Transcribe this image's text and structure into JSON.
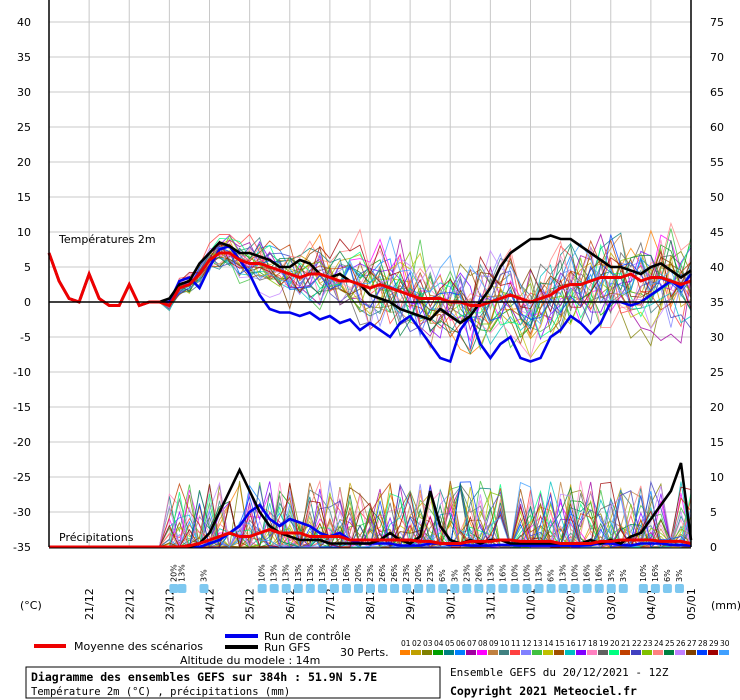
{
  "chart_data": {
    "type": "line",
    "title": "Diagramme des ensembles GEFS sur 384h : 51.9N 5.7E",
    "subtitle": "Température 2m (°C) , précipitations (mm)",
    "altitude": "Altitude du modele : 14m",
    "run_info": "Ensemble GEFS du 20/12/2021 - 12Z",
    "copyright": "Copyright 2021 Meteociel.fr",
    "left_unit": "(°C)",
    "right_unit": "(mm)",
    "temp_label": "Températures 2m",
    "precip_label": "Précipitations",
    "left_ticks": [
      "40",
      "35",
      "30",
      "25",
      "20",
      "15",
      "10",
      "5",
      "0",
      "-5",
      "-10",
      "-15",
      "-20",
      "-25",
      "-30",
      "-35"
    ],
    "right_ticks": [
      "75",
      "70",
      "65",
      "60",
      "55",
      "50",
      "45",
      "40",
      "35",
      "30",
      "25",
      "20",
      "15",
      "10",
      "5",
      "0"
    ],
    "ylim_temp": [
      -35,
      40
    ],
    "ylim_precip": [
      0,
      75
    ],
    "x_dates": [
      "21/12",
      "22/12",
      "23/12",
      "24/12",
      "25/12",
      "26/12",
      "27/12",
      "28/12",
      "29/12",
      "30/12",
      "31/12",
      "01/01",
      "02/01",
      "03/01",
      "04/01",
      "05/01"
    ],
    "legend": {
      "mean": "Moyenne des scénarios",
      "control": "Run de contrôle",
      "gfs": "Run GFS",
      "perts": "30 Perts."
    },
    "pert_labels": [
      "01",
      "02",
      "03",
      "04",
      "05",
      "06",
      "07",
      "08",
      "09",
      "10",
      "11",
      "12",
      "13",
      "14",
      "15",
      "16",
      "17",
      "18",
      "19",
      "20",
      "21",
      "22",
      "23",
      "24",
      "25",
      "26",
      "27",
      "28",
      "29",
      "30"
    ],
    "pert_colors": [
      "#ff8000",
      "#c0a000",
      "#808000",
      "#00a000",
      "#008080",
      "#0080ff",
      "#a000a0",
      "#ff00ff",
      "#c08040",
      "#408080",
      "#ff4040",
      "#8080ff",
      "#40c040",
      "#c0c000",
      "#a05000",
      "#00c0c0",
      "#8000ff",
      "#ff80c0",
      "#606060",
      "#00ff80",
      "#c04000",
      "#4040c0",
      "#80c000",
      "#ff8080",
      "#008040",
      "#c080ff",
      "#804000",
      "#0040ff",
      "#a00000",
      "#40a0ff"
    ],
    "snow_marks": [
      {
        "t": 23.1,
        "v": "20%"
      },
      {
        "t": 23.3,
        "v": "13%"
      },
      {
        "t": 23.85,
        "v": "3%"
      },
      {
        "t": 25.3,
        "v": "10%"
      },
      {
        "t": 25.6,
        "v": "13%"
      },
      {
        "t": 25.9,
        "v": "13%"
      },
      {
        "t": 26.2,
        "v": "13%"
      },
      {
        "t": 26.5,
        "v": "13%"
      },
      {
        "t": 26.8,
        "v": "13%"
      },
      {
        "t": 27.1,
        "v": "10%"
      },
      {
        "t": 27.4,
        "v": "16%"
      },
      {
        "t": 27.7,
        "v": "20%"
      },
      {
        "t": 28.0,
        "v": "23%"
      },
      {
        "t": 28.3,
        "v": "26%"
      },
      {
        "t": 28.6,
        "v": "26%"
      },
      {
        "t": 28.9,
        "v": "23%"
      },
      {
        "t": 29.2,
        "v": "20%"
      },
      {
        "t": 29.5,
        "v": "23%"
      },
      {
        "t": 29.8,
        "v": "6%"
      },
      {
        "t": 30.1,
        "v": "3%"
      },
      {
        "t": 30.4,
        "v": "23%"
      },
      {
        "t": 30.7,
        "v": "26%"
      },
      {
        "t": 31.0,
        "v": "13%"
      },
      {
        "t": 31.3,
        "v": "16%"
      },
      {
        "t": 31.6,
        "v": "10%"
      },
      {
        "t": 31.9,
        "v": "10%"
      },
      {
        "t": 32.2,
        "v": "13%"
      },
      {
        "t": 32.5,
        "v": "6%"
      },
      {
        "t": 32.8,
        "v": "13%"
      },
      {
        "t": 33.1,
        "v": "10%"
      },
      {
        "t": 33.4,
        "v": "16%"
      },
      {
        "t": 33.7,
        "v": "16%"
      },
      {
        "t": 34.0,
        "v": "3%"
      },
      {
        "t": 34.3,
        "v": "3%"
      },
      {
        "t": 34.8,
        "v": "10%"
      },
      {
        "t": 35.1,
        "v": "16%"
      },
      {
        "t": 35.4,
        "v": "6%"
      },
      {
        "t": 35.7,
        "v": "3%"
      }
    ],
    "series": [
      {
        "key": "mean",
        "color": "#ee0000",
        "t": [
          20.0,
          20.25,
          20.5,
          20.75,
          21.0,
          21.25,
          21.5,
          21.75,
          22.0,
          22.25,
          22.5,
          22.75,
          23.0,
          23.25,
          23.5,
          23.75,
          24.0,
          24.25,
          24.5,
          24.75,
          25.0,
          25.25,
          25.5,
          25.75,
          26.0,
          26.25,
          26.5,
          26.75,
          27.0,
          27.25,
          27.5,
          27.75,
          28.0,
          28.25,
          28.5,
          28.75,
          29.0,
          29.25,
          29.5,
          29.75,
          30.0,
          30.25,
          30.5,
          30.75,
          31.0,
          31.25,
          31.5,
          31.75,
          32.0,
          32.25,
          32.5,
          32.75,
          33.0,
          33.25,
          33.5,
          33.75,
          34.0,
          34.25,
          34.5,
          34.75,
          35.0,
          35.25,
          35.5,
          35.75,
          36.0
        ],
        "temp": [
          7,
          3,
          0.5,
          0,
          4,
          0.5,
          -0.5,
          -0.5,
          2.5,
          -0.5,
          0,
          0,
          -0.5,
          2,
          2.5,
          4,
          6,
          7,
          7,
          6,
          5.5,
          5.5,
          5,
          4.5,
          4,
          3.5,
          4,
          4,
          3.5,
          3,
          3,
          2.5,
          2,
          2.5,
          2,
          1.5,
          1,
          0.5,
          0.5,
          0.5,
          0,
          0,
          -0.5,
          -0.5,
          0,
          0.5,
          1,
          0.5,
          0,
          0.5,
          1,
          2,
          2.5,
          2.5,
          3,
          3.5,
          3.5,
          3.5,
          4,
          3,
          3.5,
          3.5,
          3,
          2.5,
          3
        ],
        "precip": [
          0,
          0,
          0,
          0,
          0,
          0,
          0,
          0,
          0,
          0,
          0,
          0,
          0,
          0,
          0.2,
          0.5,
          1,
          1.5,
          2,
          1.5,
          1.5,
          2,
          2.5,
          2,
          2,
          2,
          1.5,
          1.5,
          1.5,
          1.5,
          1,
          1,
          1,
          1,
          1,
          1,
          1,
          0.8,
          0.8,
          0.5,
          0.5,
          0.5,
          0.8,
          0.8,
          0.8,
          1,
          1,
          0.8,
          0.8,
          0.8,
          0.8,
          0.5,
          0.5,
          0.5,
          0.5,
          0.8,
          0.8,
          1,
          1,
          1,
          1,
          0.8,
          0.8,
          0.8,
          0.5
        ]
      },
      {
        "key": "control",
        "color": "#0000ee",
        "t": [
          20.0,
          20.25,
          20.5,
          20.75,
          21.0,
          21.25,
          21.5,
          21.75,
          22.0,
          22.25,
          22.5,
          22.75,
          23.0,
          23.25,
          23.5,
          23.75,
          24.0,
          24.25,
          24.5,
          24.75,
          25.0,
          25.25,
          25.5,
          25.75,
          26.0,
          26.25,
          26.5,
          26.75,
          27.0,
          27.25,
          27.5,
          27.75,
          28.0,
          28.25,
          28.5,
          28.75,
          29.0,
          29.25,
          29.5,
          29.75,
          30.0,
          30.25,
          30.5,
          30.75,
          31.0,
          31.25,
          31.5,
          31.75,
          32.0,
          32.25,
          32.5,
          32.75,
          33.0,
          33.25,
          33.5,
          33.75,
          34.0,
          34.25,
          34.5,
          34.75,
          35.0,
          35.25,
          35.5,
          35.75,
          36.0
        ],
        "temp": [
          7,
          3,
          0.5,
          0,
          4,
          0.5,
          -0.5,
          -0.5,
          2.5,
          -0.5,
          0,
          0,
          0,
          3,
          3.5,
          2,
          5,
          7.5,
          8,
          6,
          4,
          1,
          -1,
          -1.5,
          -1.5,
          -2,
          -1.5,
          -2.5,
          -2,
          -3,
          -2.5,
          -4,
          -3,
          -4,
          -5,
          -3,
          -2,
          -4,
          -6,
          -8,
          -8.5,
          -4,
          -2,
          -6,
          -8,
          -6,
          -5,
          -8,
          -8.5,
          -8,
          -5,
          -4,
          -2,
          -3,
          -4.5,
          -3,
          0,
          0,
          -0.5,
          0,
          1,
          2,
          3,
          2,
          4
        ],
        "precip": [
          0,
          0,
          0,
          0,
          0,
          0,
          0,
          0,
          0,
          0,
          0,
          0,
          0,
          0,
          0,
          0,
          0.5,
          1,
          2,
          3,
          5,
          6,
          4,
          3,
          4,
          3.5,
          3,
          2,
          1.5,
          2,
          1,
          0.5,
          0.5,
          0.5,
          0.5,
          0.2,
          0.2,
          0.2,
          0.5,
          0.5,
          0.3,
          0.3,
          0.2,
          0.2,
          0.2,
          0.3,
          0.3,
          0.2,
          0.2,
          0.2,
          0.2,
          0.2,
          0.2,
          0.2,
          0.3,
          0.5,
          0.5,
          0.3,
          0.2,
          0.5,
          0.5,
          0.5,
          0.3,
          0.3,
          0.2
        ]
      },
      {
        "key": "gfs",
        "color": "#000000",
        "t": [
          20.0,
          20.25,
          20.5,
          20.75,
          21.0,
          21.25,
          21.5,
          21.75,
          22.0,
          22.25,
          22.5,
          22.75,
          23.0,
          23.25,
          23.5,
          23.75,
          24.0,
          24.25,
          24.5,
          24.75,
          25.0,
          25.25,
          25.5,
          25.75,
          26.0,
          26.25,
          26.5,
          26.75,
          27.0,
          27.25,
          27.5,
          27.75,
          28.0,
          28.25,
          28.5,
          28.75,
          29.0,
          29.25,
          29.5,
          29.75,
          30.0,
          30.25,
          30.5,
          30.75,
          31.0,
          31.25,
          31.5,
          31.75,
          32.0,
          32.25,
          32.5,
          32.75,
          33.0,
          33.25,
          33.5,
          33.75,
          34.0,
          34.25,
          34.5,
          34.75,
          35.0,
          35.25,
          35.5,
          35.75,
          36.0
        ],
        "temp": [
          7,
          3,
          0.5,
          0,
          4,
          0.5,
          -0.5,
          -0.5,
          2.5,
          -0.5,
          0,
          0,
          0.5,
          2.5,
          3,
          5.5,
          7,
          8.5,
          8,
          7,
          7,
          6.5,
          6,
          5,
          5,
          6,
          5.5,
          4,
          3.5,
          4,
          3,
          2.5,
          1,
          0.5,
          0,
          -1,
          -1.5,
          -2,
          -2.5,
          -1,
          -2,
          -3,
          -2,
          0,
          2,
          5,
          7,
          8,
          9,
          9,
          9.5,
          9,
          9,
          8,
          7,
          6,
          5,
          5,
          4.5,
          4,
          5,
          5.5,
          4.5,
          3.5,
          4.5
        ],
        "precip": [
          0,
          0,
          0,
          0,
          0,
          0,
          0,
          0,
          0,
          0,
          0,
          0,
          0,
          0,
          0,
          0.5,
          2,
          5,
          8,
          11,
          8,
          5,
          3,
          2,
          1.5,
          1,
          1,
          1,
          0.5,
          0.5,
          0.5,
          0.5,
          0.5,
          1,
          2,
          1,
          0.5,
          1.5,
          8,
          3,
          1,
          0.5,
          1,
          0.5,
          1,
          1,
          0.5,
          0.5,
          0.5,
          0.5,
          0.5,
          0.5,
          0.5,
          0.5,
          1,
          0.5,
          1,
          0.5,
          1.5,
          2,
          4,
          6,
          8,
          12,
          1
        ]
      }
    ]
  }
}
